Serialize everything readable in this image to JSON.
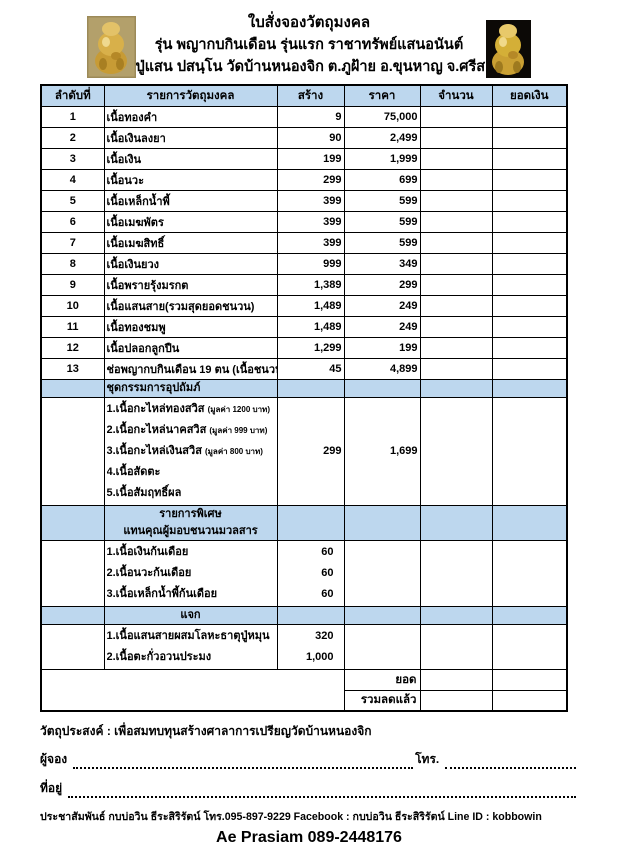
{
  "header": {
    "title1": "ใบสั่งจองวัตถุมงคล",
    "title2": "รุ่น พญากบกินเดือน รุ่นแรก ราชาทรัพย์แสนอนันต์",
    "title3": "หลวงปู่แสน ปสนฺโน วัดบ้านหนองจิก ต.ภูฝ้าย  อ.ขุนหาญ  จ.ศรีสะเกษ",
    "left_photo": "amulet-photo-frog-back",
    "right_photo": "amulet-photo-frog-front"
  },
  "colors": {
    "table_header_bg": "#BDD7EE",
    "border": "#000000",
    "gold": "#D4AF37",
    "photo_left_bg": "#9c8a58",
    "photo_right_bg": "#0c0906"
  },
  "table": {
    "columns": [
      "ลำดับที่",
      "รายการวัตถุมงคล",
      "สร้าง",
      "ราคา",
      "จำนวน",
      "ยอดเงิน"
    ],
    "rows": [
      {
        "no": "1",
        "item": "เนื้อทองคำ",
        "made": "9",
        "price": "75,000"
      },
      {
        "no": "2",
        "item": "เนื้อเงินลงยา",
        "made": "90",
        "price": "2,499"
      },
      {
        "no": "3",
        "item": "เนื้อเงิน",
        "made": "199",
        "price": "1,999"
      },
      {
        "no": "4",
        "item": "เนื้อนวะ",
        "made": "299",
        "price": "699"
      },
      {
        "no": "5",
        "item": "เนื้อเหล็กน้ำพี้",
        "made": "399",
        "price": "599"
      },
      {
        "no": "6",
        "item": "เนื้อเมฆพัตร",
        "made": "399",
        "price": "599"
      },
      {
        "no": "7",
        "item": "เนื้อเมฆสิทธิ์",
        "made": "399",
        "price": "599"
      },
      {
        "no": "8",
        "item": "เนื้อเงินยวง",
        "made": "999",
        "price": "349"
      },
      {
        "no": "9",
        "item": "เนื้อพรายรุ้งมรกต",
        "made": "1,389",
        "price": "299"
      },
      {
        "no": "10",
        "item": "เนื้อแสนสาย(รวมสุดยอดชนวน)",
        "made": "1,489",
        "price": "249"
      },
      {
        "no": "11",
        "item": "เนื้อทองชมพู",
        "made": "1,489",
        "price": "249"
      },
      {
        "no": "12",
        "item": "เนื้อปลอกลูกปืน",
        "made": "1,299",
        "price": "199"
      },
      {
        "no": "13",
        "item": "ช่อพญากบกินเดือน 19 ตน (เนื้อชนวน)",
        "made": "45",
        "price": "4,899"
      }
    ],
    "sections": [
      {
        "id": "committee",
        "header_lines": [
          "ชุดกรรมการอุปถัมภ์"
        ],
        "header_align": "left",
        "items": [
          {
            "label": "1.เนื้อกะไหล่ทองสวิส",
            "note": "(มูลค่า 1200 บาท)"
          },
          {
            "label": "2.เนื้อกะไหล่นาคสวิส",
            "note": "(มูลค่า 999 บาท)"
          },
          {
            "label": "3.เนื้อกะไหล่เงินสวิส",
            "note": "(มูลค่า 800 บาท)"
          },
          {
            "label": "4.เนื้อสัดตะ",
            "note": ""
          },
          {
            "label": "5.เนื้อสัมฤทธิ์ผล",
            "note": ""
          }
        ],
        "made": "299",
        "price": "1,699"
      },
      {
        "id": "special",
        "header_lines": [
          "รายการพิเศษ",
          "แทนคุณผู้มอบชนวนมวลสาร"
        ],
        "header_align": "center",
        "items": [
          {
            "label": "1.เนื้อเงินก้นเดือย",
            "made": "60"
          },
          {
            "label": "2.เนื้อนวะก้นเดือย",
            "made": "60"
          },
          {
            "label": "3.เนื้อเหล็กน้ำพี้ก้นเดือย",
            "made": "60"
          }
        ]
      },
      {
        "id": "giveaway",
        "header_lines": [
          "แจก"
        ],
        "header_align": "center",
        "items": [
          {
            "label": "1.เนื้อแสนสายผสมโลหะธาตุปู่หมุน",
            "made": "320"
          },
          {
            "label": "2.เนื้อตะกั่วอวนประมง",
            "made": "1,000"
          }
        ]
      }
    ],
    "totals": [
      {
        "label": "ยอด"
      },
      {
        "label": "รวมลดแล้ว"
      }
    ]
  },
  "footer": {
    "purpose": "วัตถุประสงค์ : เพื่อสมทบทุนสร้างศาลาการเปรียญวัดบ้านหนองจิก",
    "orderer_label": "ผู้จอง",
    "phone_label": "โทร.",
    "address_label": "ที่อยู่",
    "pr_line": "ประชาสัมพันธ์  กบบ่อวิน ธีระสิริรัตน์  โทร.095-897-9229  Facebook : กบบ่อวิน ธีระสิริรัตน์  Line ID : kobbowin",
    "contact_name": "Ae Prasiam 089-2448176"
  }
}
